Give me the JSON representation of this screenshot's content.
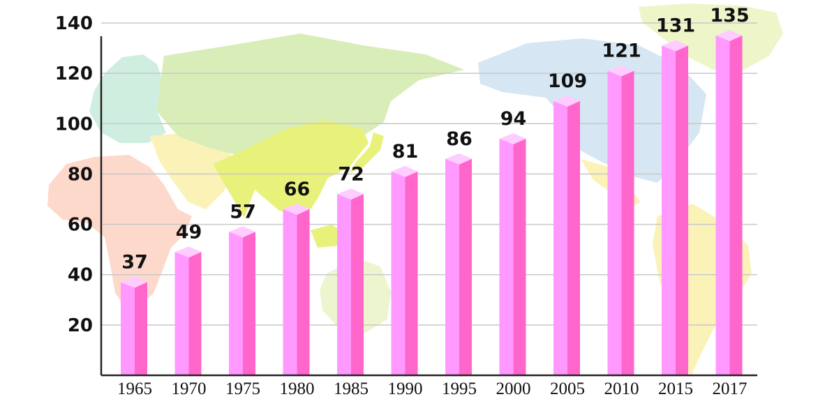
{
  "chart_data": {
    "type": "bar",
    "title": "",
    "xlabel": "",
    "ylabel": "",
    "categories": [
      "1965",
      "1970",
      "1975",
      "1980",
      "1985",
      "1990",
      "1995",
      "2000",
      "2005",
      "2010",
      "2015",
      "2017"
    ],
    "values": [
      37,
      49,
      57,
      66,
      72,
      81,
      86,
      94,
      109,
      121,
      131,
      135
    ],
    "ylim": [
      0,
      140
    ],
    "yticks": [
      20,
      40,
      60,
      80,
      100,
      120,
      140
    ],
    "grid": true,
    "legend": "none",
    "background": "world-map",
    "colors": {
      "bar_front": "#ff99ff",
      "bar_side": "#ff66cc",
      "bar_top": "#ffccff",
      "grid": "#c8c8c8",
      "axis": "#222222"
    }
  }
}
